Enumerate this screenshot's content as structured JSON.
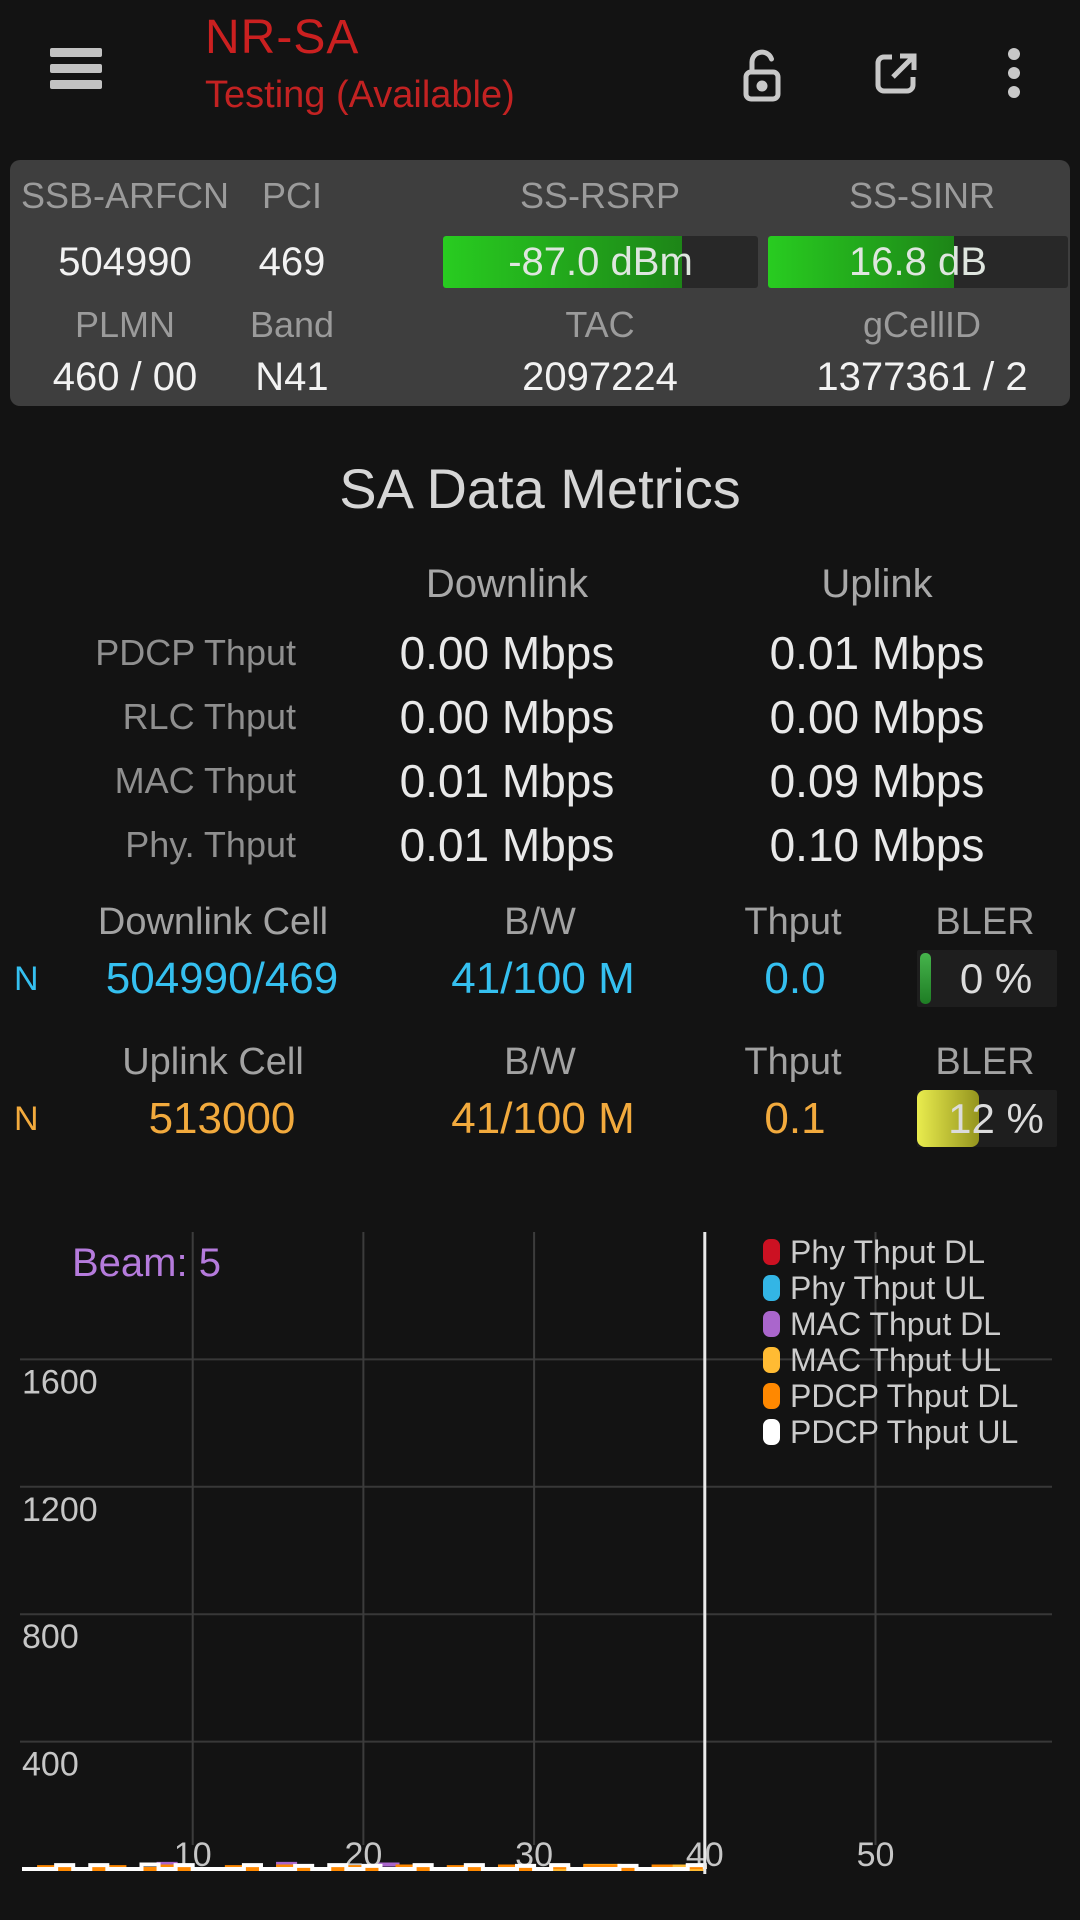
{
  "header": {
    "title": "NR-SA",
    "subtitle": "Testing (Available)",
    "title_color": "#cb2020",
    "icons": [
      "menu-icon",
      "lock-open-icon",
      "external-link-icon",
      "kebab-menu-icon"
    ]
  },
  "info_card": {
    "cells": [
      {
        "label": "SSB-ARFCN",
        "value": "504990"
      },
      {
        "label": "PCI",
        "value": "469"
      },
      {
        "label": "SS-RSRP",
        "value": "-87.0 dBm",
        "meter": {
          "pct": 76,
          "color_start": "#28cc20",
          "color_end": "#1d8517"
        }
      },
      {
        "label": "SS-SINR",
        "value": "16.8 dB",
        "meter": {
          "pct": 62,
          "color_start": "#28cc20",
          "color_end": "#1d8517"
        }
      },
      {
        "label": "PLMN",
        "value": "460 / 00"
      },
      {
        "label": "Band",
        "value": "N41"
      },
      {
        "label": "TAC",
        "value": "2097224"
      },
      {
        "label": "gCellID",
        "value": "1377361 / 2"
      }
    ]
  },
  "sa_metrics": {
    "title": "SA Data Metrics",
    "columns": [
      "Downlink",
      "Uplink"
    ],
    "rows": [
      {
        "label": "PDCP Thput",
        "downlink": "0.00 Mbps",
        "uplink": "0.01 Mbps"
      },
      {
        "label": "RLC Thput",
        "downlink": "0.00 Mbps",
        "uplink": "0.00 Mbps"
      },
      {
        "label": "MAC Thput",
        "downlink": "0.01 Mbps",
        "uplink": "0.09 Mbps"
      },
      {
        "label": "Phy. Thput",
        "downlink": "0.01 Mbps",
        "uplink": "0.10 Mbps"
      }
    ]
  },
  "cell_sections": [
    {
      "name": "downlink",
      "headers": [
        "Downlink Cell",
        "B/W",
        "Thput",
        "BLER"
      ],
      "tech": "N",
      "cell_id": "504990/469",
      "bw": "41/100 M",
      "thput": "0.0",
      "bler_text": "0 %",
      "bler_fill_pct": 8,
      "accent": "#35c0f0",
      "bler_color_start": "#46b44c",
      "bler_color_end": "#1e7d24"
    },
    {
      "name": "uplink",
      "headers": [
        "Uplink Cell",
        "B/W",
        "Thput",
        "BLER"
      ],
      "tech": "N",
      "cell_id": "513000",
      "bw": "41/100 M",
      "thput": "0.1",
      "bler_text": "12 %",
      "bler_fill_pct": 44,
      "accent": "#f2aa3d",
      "bler_color_start": "#e9ec4e",
      "bler_color_end": "#94941e"
    }
  ],
  "chart_data": {
    "type": "line",
    "annotation": "Beam: 5",
    "annotation_color": "#b57bdc",
    "xlim": [
      0,
      60
    ],
    "ylim": [
      0,
      2000
    ],
    "x_ticks": [
      10,
      20,
      30,
      40,
      50
    ],
    "y_ticks": [
      400,
      800,
      1200,
      1600
    ],
    "grid": true,
    "legend_position": "top-right",
    "highlight_x": 40,
    "x_values_are_index": true,
    "series": [
      {
        "name": "Phy Thput DL",
        "color": "#cc1122",
        "values": [
          0,
          0,
          0,
          0,
          0,
          0,
          0,
          0,
          0,
          0,
          0,
          0,
          0,
          0,
          0,
          0,
          0,
          0,
          0,
          0,
          0,
          0,
          0,
          0,
          0,
          0,
          0,
          0,
          0,
          0,
          0,
          0,
          0,
          0,
          0,
          0,
          0,
          0,
          0,
          0,
          0
        ]
      },
      {
        "name": "Phy Thput UL",
        "color": "#33b5e5",
        "values": [
          0,
          0,
          0,
          0,
          0,
          0,
          0,
          0,
          0,
          0,
          0,
          0,
          0,
          0,
          0,
          0,
          0,
          0,
          0,
          0,
          0,
          0,
          0,
          0,
          0,
          0,
          0,
          0,
          0,
          0,
          0,
          0,
          0,
          0,
          0,
          0,
          0,
          0,
          0,
          0,
          0
        ]
      },
      {
        "name": "MAC Thput DL",
        "color": "#aa66cc",
        "values": [
          0,
          0,
          0,
          0,
          0,
          0,
          0,
          0,
          16,
          0,
          0,
          0,
          0,
          0,
          0,
          16,
          0,
          0,
          0,
          0,
          0,
          14,
          0,
          0,
          0,
          0,
          0,
          0,
          0,
          0,
          0,
          0,
          0,
          0,
          0,
          0,
          0,
          0,
          0,
          0,
          0
        ]
      },
      {
        "name": "MAC Thput UL",
        "color": "#ffbb33",
        "values": [
          0,
          0,
          0,
          0,
          0,
          0,
          0,
          0,
          0,
          0,
          0,
          0,
          0,
          0,
          0,
          0,
          0,
          0,
          0,
          0,
          0,
          0,
          0,
          0,
          0,
          0,
          0,
          0,
          0,
          0,
          0,
          0,
          0,
          10,
          10,
          0,
          0,
          0,
          8,
          0,
          0
        ]
      },
      {
        "name": "PDCP Thput DL",
        "color": "#ff8800",
        "values": [
          0,
          6,
          0,
          0,
          0,
          6,
          0,
          0,
          8,
          0,
          0,
          0,
          6,
          0,
          0,
          8,
          0,
          0,
          0,
          6,
          0,
          0,
          8,
          0,
          0,
          6,
          0,
          0,
          8,
          0,
          0,
          6,
          0,
          8,
          8,
          0,
          0,
          8,
          0,
          6,
          0
        ]
      },
      {
        "name": "PDCP Thput UL",
        "color": "#ffffff",
        "values": [
          0,
          0,
          12,
          0,
          12,
          0,
          0,
          14,
          0,
          12,
          0,
          0,
          0,
          12,
          0,
          0,
          10,
          0,
          12,
          0,
          10,
          0,
          0,
          12,
          0,
          0,
          12,
          0,
          0,
          10,
          0,
          12,
          0,
          0,
          0,
          10,
          0,
          0,
          0,
          12,
          0
        ]
      }
    ]
  }
}
